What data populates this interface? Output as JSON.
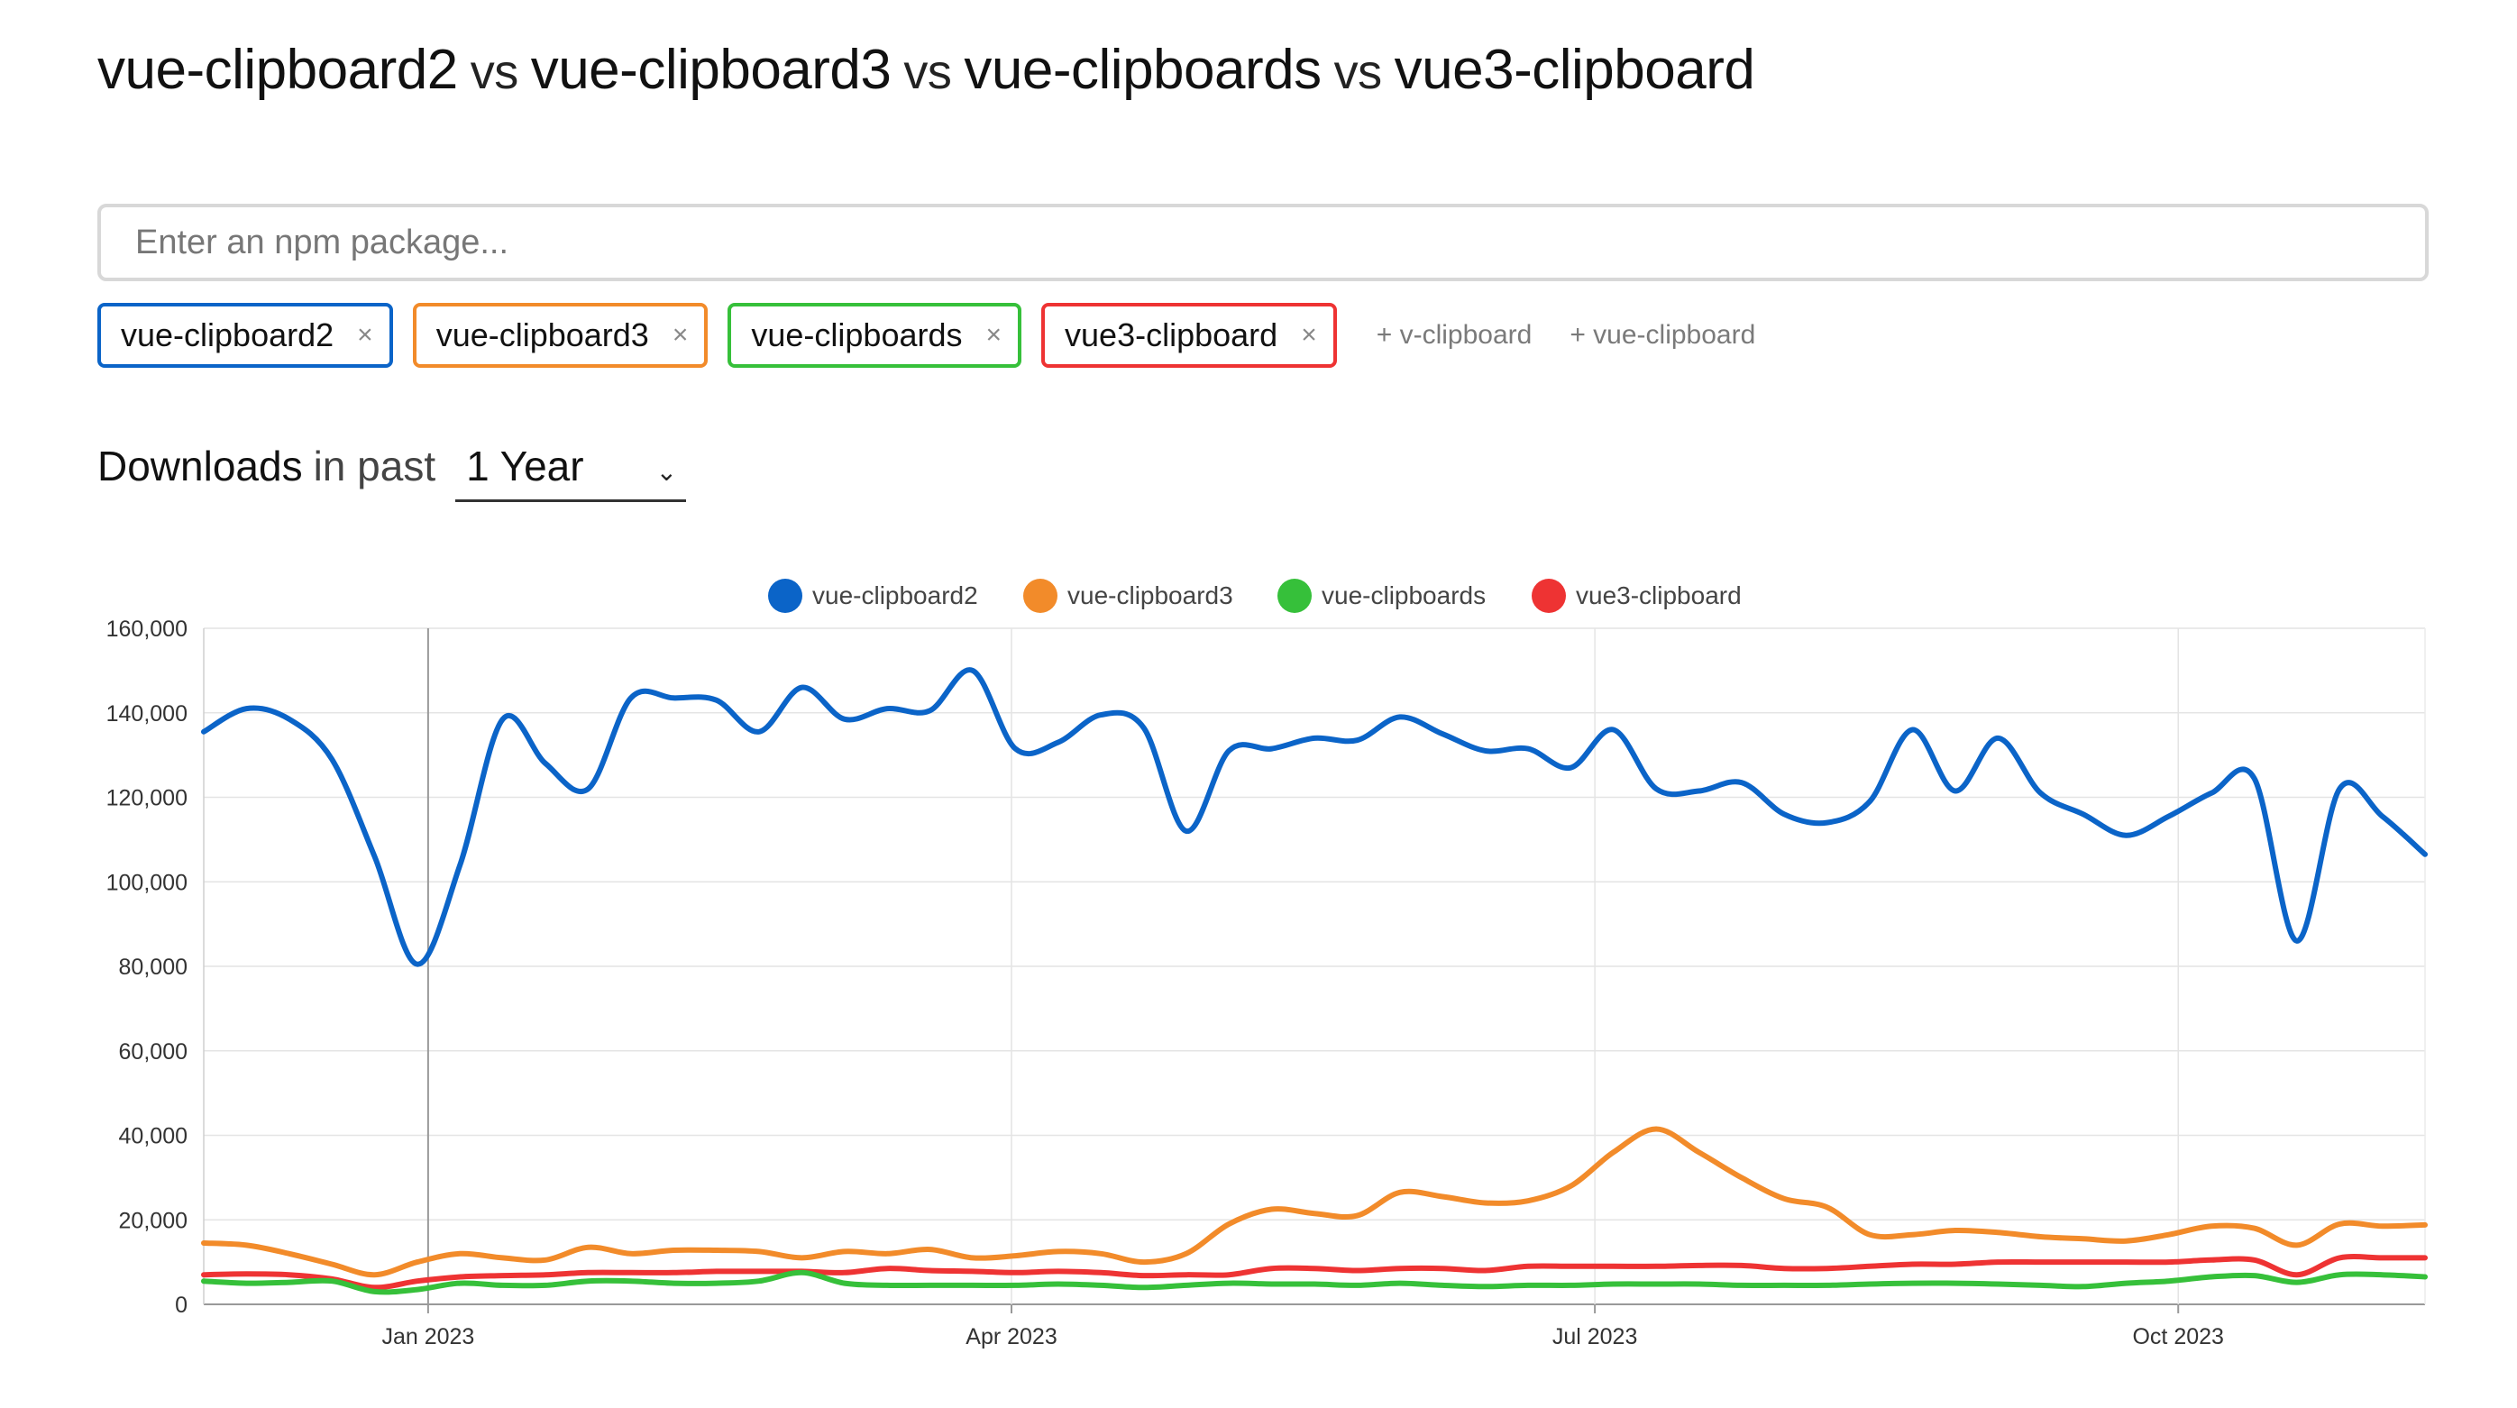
{
  "title": {
    "packages": [
      "vue-clipboard2",
      "vue-clipboard3",
      "vue-clipboards",
      "vue3-clipboard"
    ],
    "separator": "vs"
  },
  "search": {
    "placeholder": "Enter an npm package..."
  },
  "chips": [
    {
      "label": "vue-clipboard2",
      "color": "#0b64c8",
      "remove": "×"
    },
    {
      "label": "vue-clipboard3",
      "color": "#f28b2a",
      "remove": "×"
    },
    {
      "label": "vue-clipboards",
      "color": "#36c03a",
      "remove": "×"
    },
    {
      "label": "vue3-clipboard",
      "color": "#ee3333",
      "remove": "×"
    }
  ],
  "suggestions": [
    "+ v-clipboard",
    "+ vue-clipboard"
  ],
  "downloads": {
    "label": "Downloads",
    "in_past": "in past",
    "period": "1 Year",
    "chevron": "⌄"
  },
  "chart_data": {
    "type": "line",
    "title": "",
    "xlabel": "",
    "ylabel": "",
    "ylim": [
      0,
      160000
    ],
    "y_ticks": [
      "0",
      "20,000",
      "40,000",
      "60,000",
      "80,000",
      "100,000",
      "120,000",
      "140,000",
      "160,000"
    ],
    "x_ticks": [
      {
        "label": "Jan 2023",
        "week": 8
      },
      {
        "label": "Apr 2023",
        "week": 21
      },
      {
        "label": "Jul 2023",
        "week": 34
      },
      {
        "label": "Oct 2023",
        "week": 47
      }
    ],
    "x_range_weeks": [
      3,
      52.5
    ],
    "crosshair_week": 8,
    "grid": true,
    "legend_position": "top-center",
    "series": [
      {
        "name": "vue-clipboard2",
        "color": "#0b64c8",
        "values": [
          135500,
          141000,
          138500,
          129000,
          106000,
          80500,
          104000,
          138500,
          128000,
          122000,
          143500,
          143500,
          143000,
          135500,
          146000,
          138500,
          141000,
          140500,
          150000,
          131500,
          133000,
          139500,
          136500,
          112000,
          131000,
          131500,
          134000,
          133500,
          139000,
          135000,
          131000,
          131500,
          127000,
          136000,
          122000,
          121500,
          123500,
          116000,
          114000,
          119000,
          136000,
          121500,
          134000,
          121000,
          116000,
          111000,
          115500,
          121000,
          124500,
          86000,
          122000,
          115500,
          106500
        ]
      },
      {
        "name": "vue-clipboard3",
        "color": "#f28b2a",
        "values": [
          14500,
          14000,
          12000,
          9500,
          7000,
          10000,
          12000,
          11000,
          10500,
          13500,
          12000,
          12800,
          12800,
          12500,
          11000,
          12500,
          12000,
          13000,
          11000,
          11500,
          12500,
          12000,
          10000,
          12000,
          19000,
          22500,
          21500,
          21000,
          26500,
          25500,
          24000,
          24500,
          28000,
          36000,
          41500,
          36000,
          30000,
          25000,
          23000,
          16500,
          16500,
          17500,
          17000,
          16000,
          15500,
          15000,
          16500,
          18500,
          18000,
          14000,
          19000,
          18500,
          18800
        ]
      },
      {
        "name": "vue-clipboards",
        "color": "#36c03a",
        "values": [
          5500,
          5000,
          5200,
          5500,
          3000,
          3500,
          5000,
          4500,
          4500,
          5500,
          5500,
          5000,
          5000,
          5500,
          7500,
          5000,
          4500,
          4500,
          4500,
          4500,
          4800,
          4500,
          4000,
          4500,
          5000,
          4800,
          4800,
          4500,
          5000,
          4500,
          4200,
          4500,
          4500,
          4800,
          4800,
          4800,
          4500,
          4500,
          4500,
          4800,
          5000,
          5000,
          4800,
          4500,
          4200,
          5000,
          5500,
          6500,
          6800,
          5200,
          7000,
          7000,
          6500
        ]
      },
      {
        "name": "vue3-clipboard",
        "color": "#ee3333",
        "values": [
          7000,
          7200,
          7000,
          6000,
          4000,
          5500,
          6500,
          6800,
          7000,
          7500,
          7500,
          7500,
          7800,
          7800,
          7800,
          7500,
          8500,
          8000,
          7800,
          7500,
          7800,
          7500,
          6800,
          7000,
          7000,
          8500,
          8500,
          8000,
          8500,
          8500,
          8000,
          9000,
          9000,
          9000,
          9000,
          9200,
          9200,
          8500,
          8500,
          9000,
          9500,
          9500,
          10000,
          10000,
          10000,
          10000,
          10000,
          10500,
          10500,
          7000,
          11000,
          11000,
          11000
        ]
      }
    ]
  }
}
